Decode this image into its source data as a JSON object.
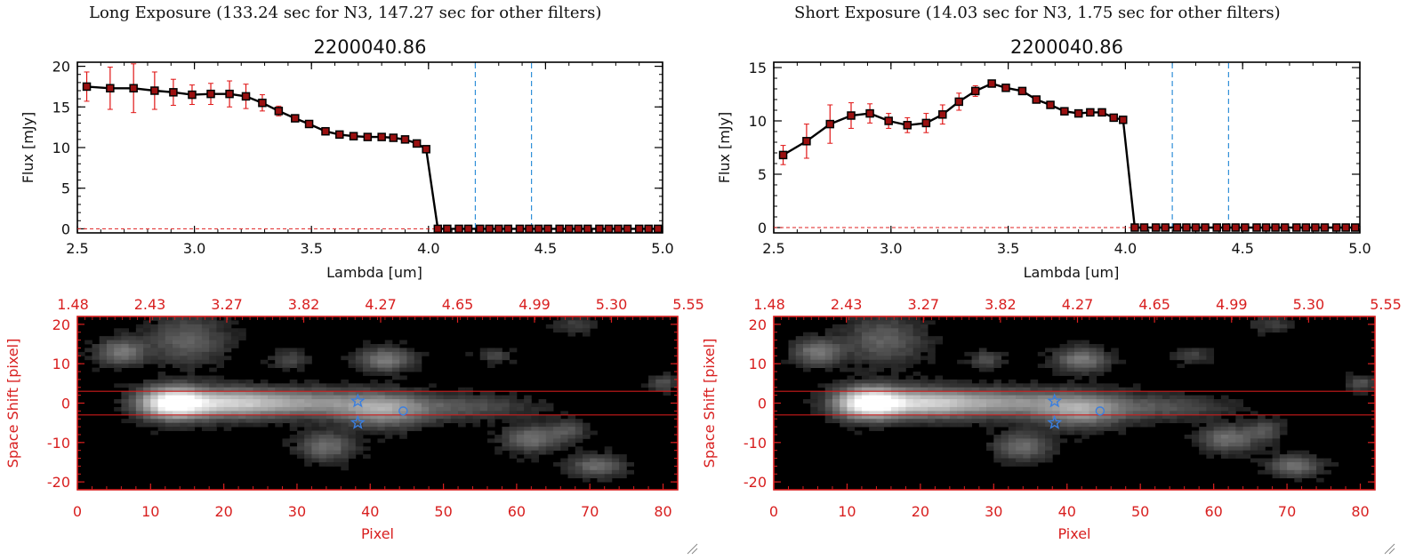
{
  "panels": [
    {
      "title": "Long Exposure (133.24 sec for N3, 147.27 sec for other filters)",
      "spectrum": {
        "type": "line",
        "title": "2200040.86",
        "xlabel": "Lambda [um]",
        "ylabel": "Flux [mJy]",
        "xlim": [
          2.5,
          5.0
        ],
        "ylim": [
          -0.5,
          20.5
        ],
        "xticks": [
          "2.5",
          "3.0",
          "3.5",
          "4.0",
          "4.5",
          "5.0"
        ],
        "yticks": [
          "0",
          "5",
          "10",
          "15",
          "20"
        ],
        "dashed_lines": [
          4.2,
          4.44
        ],
        "x": [
          2.54,
          2.64,
          2.74,
          2.83,
          2.91,
          2.99,
          3.07,
          3.15,
          3.22,
          3.29,
          3.36,
          3.43,
          3.49,
          3.56,
          3.62,
          3.68,
          3.74,
          3.8,
          3.85,
          3.9,
          3.95,
          3.99,
          4.04,
          4.08,
          4.13,
          4.17,
          4.22,
          4.26,
          4.3,
          4.34,
          4.39,
          4.43,
          4.47,
          4.51,
          4.56,
          4.6,
          4.64,
          4.68,
          4.73,
          4.77,
          4.81,
          4.85,
          4.9,
          4.94,
          4.98
        ],
        "y": [
          17.5,
          17.3,
          17.3,
          17.0,
          16.8,
          16.5,
          16.6,
          16.6,
          16.3,
          15.5,
          14.5,
          13.6,
          12.9,
          12.0,
          11.6,
          11.4,
          11.3,
          11.3,
          11.2,
          11.0,
          10.5,
          9.8,
          0,
          0,
          0,
          0,
          0,
          0,
          0,
          0,
          0,
          0,
          0,
          0,
          0,
          0,
          0,
          0,
          0,
          0,
          0,
          0,
          0,
          0,
          0
        ],
        "yerr": [
          1.8,
          2.6,
          3.0,
          2.3,
          1.6,
          1.2,
          1.3,
          1.6,
          1.5,
          1.0,
          0.6,
          0.4,
          0.3,
          0.3,
          0.2,
          0.2,
          0.2,
          0.2,
          0.2,
          0.2,
          0.3,
          0.4,
          0,
          0,
          0,
          0,
          0,
          0,
          0,
          0,
          0,
          0,
          0,
          0,
          0,
          0,
          0,
          0,
          0,
          0,
          0,
          0,
          0,
          0,
          0
        ]
      },
      "image": {
        "type": "heatmap",
        "xlabel": "Pixel",
        "ylabel": "Space Shift [pixel]",
        "xlim": [
          0,
          82
        ],
        "ylim": [
          -22,
          22
        ],
        "xticks": [
          "0",
          "10",
          "20",
          "30",
          "40",
          "50",
          "60",
          "70",
          "80"
        ],
        "yticks": [
          "-20",
          "-10",
          "0",
          "10",
          "20"
        ],
        "top_ticks": [
          "1.48",
          "2.43",
          "3.27",
          "3.82",
          "4.27",
          "4.65",
          "4.99",
          "5.30",
          "5.55"
        ],
        "aperture_lines": [
          3,
          -3
        ],
        "markers": [
          {
            "shape": "star",
            "x": 38.3,
            "y": 0.5
          },
          {
            "shape": "star",
            "x": 38.3,
            "y": -5
          },
          {
            "shape": "circle",
            "x": 44.5,
            "y": -2
          }
        ]
      }
    },
    {
      "title": "Short Exposure (14.03 sec for N3, 1.75 sec for other filters)",
      "spectrum": {
        "type": "line",
        "title": "2200040.86",
        "xlabel": "Lambda [um]",
        "ylabel": "Flux [mJy]",
        "xlim": [
          2.5,
          5.0
        ],
        "ylim": [
          -0.5,
          15.5
        ],
        "xticks": [
          "2.5",
          "3.0",
          "3.5",
          "4.0",
          "4.5",
          "5.0"
        ],
        "yticks": [
          "0",
          "5",
          "10",
          "15"
        ],
        "dashed_lines": [
          4.2,
          4.44
        ],
        "x": [
          2.54,
          2.64,
          2.74,
          2.83,
          2.91,
          2.99,
          3.07,
          3.15,
          3.22,
          3.29,
          3.36,
          3.43,
          3.49,
          3.56,
          3.62,
          3.68,
          3.74,
          3.8,
          3.85,
          3.9,
          3.95,
          3.99,
          4.04,
          4.08,
          4.13,
          4.17,
          4.22,
          4.26,
          4.3,
          4.34,
          4.39,
          4.43,
          4.47,
          4.51,
          4.56,
          4.6,
          4.64,
          4.68,
          4.73,
          4.77,
          4.81,
          4.85,
          4.9,
          4.94,
          4.98
        ],
        "y": [
          6.8,
          8.1,
          9.7,
          10.5,
          10.7,
          10.0,
          9.6,
          9.8,
          10.6,
          11.8,
          12.8,
          13.5,
          13.1,
          12.8,
          12.0,
          11.5,
          10.9,
          10.7,
          10.8,
          10.8,
          10.3,
          10.1,
          0,
          0,
          0,
          0,
          0,
          0,
          0,
          0,
          0,
          0,
          0,
          0,
          0,
          0,
          0,
          0,
          0,
          0,
          0,
          0,
          0,
          0,
          0
        ],
        "yerr": [
          0.9,
          1.6,
          1.8,
          1.2,
          0.9,
          0.7,
          0.7,
          0.9,
          0.9,
          0.8,
          0.5,
          0.3,
          0.3,
          0.3,
          0.2,
          0.2,
          0.2,
          0.2,
          0.2,
          0.2,
          0.2,
          0.3,
          0,
          0,
          0,
          0,
          0,
          0,
          0,
          0,
          0,
          0,
          0,
          0,
          0,
          0,
          0,
          0,
          0,
          0,
          0,
          0,
          0,
          0,
          0
        ]
      },
      "image": {
        "type": "heatmap",
        "xlabel": "Pixel",
        "ylabel": "Space Shift [pixel]",
        "xlim": [
          0,
          82
        ],
        "ylim": [
          -22,
          22
        ],
        "xticks": [
          "0",
          "10",
          "20",
          "30",
          "40",
          "50",
          "60",
          "70",
          "80"
        ],
        "yticks": [
          "-20",
          "-10",
          "0",
          "10",
          "20"
        ],
        "top_ticks": [
          "1.48",
          "2.43",
          "3.27",
          "3.82",
          "4.27",
          "4.65",
          "4.99",
          "5.30",
          "5.55"
        ],
        "aperture_lines": [
          3,
          -3
        ],
        "markers": [
          {
            "shape": "star",
            "x": 38.3,
            "y": 0.5
          },
          {
            "shape": "star",
            "x": 38.3,
            "y": -5
          },
          {
            "shape": "circle",
            "x": 44.5,
            "y": -2
          }
        ]
      }
    }
  ],
  "image_sources": [
    {
      "x": 13,
      "y": 0,
      "sx": 3.0,
      "sy": 2.6,
      "amp": 1.0
    },
    {
      "x": 20,
      "y": 0,
      "sx": 5.0,
      "sy": 2.4,
      "amp": 0.55
    },
    {
      "x": 31,
      "y": 0,
      "sx": 8.0,
      "sy": 2.3,
      "amp": 0.45
    },
    {
      "x": 42,
      "y": -2,
      "sx": 4.0,
      "sy": 2.8,
      "amp": 0.42
    },
    {
      "x": 53,
      "y": -1,
      "sx": 6.0,
      "sy": 2.0,
      "amp": 0.2
    },
    {
      "x": 6,
      "y": 13,
      "sx": 2.2,
      "sy": 2.2,
      "amp": 0.35
    },
    {
      "x": 15,
      "y": 16,
      "sx": 3.5,
      "sy": 4.0,
      "amp": 0.25
    },
    {
      "x": 42,
      "y": 11,
      "sx": 2.4,
      "sy": 2.0,
      "amp": 0.35
    },
    {
      "x": 29,
      "y": 11,
      "sx": 1.5,
      "sy": 1.5,
      "amp": 0.18
    },
    {
      "x": 34,
      "y": -11,
      "sx": 2.5,
      "sy": 2.4,
      "amp": 0.3
    },
    {
      "x": 62,
      "y": -9,
      "sx": 2.5,
      "sy": 2.2,
      "amp": 0.32
    },
    {
      "x": 67,
      "y": -7,
      "sx": 1.6,
      "sy": 1.8,
      "amp": 0.2
    },
    {
      "x": 71,
      "y": -16,
      "sx": 2.4,
      "sy": 1.8,
      "amp": 0.3
    },
    {
      "x": 80,
      "y": 5,
      "sx": 1.2,
      "sy": 1.4,
      "amp": 0.2
    },
    {
      "x": 57,
      "y": 12,
      "sx": 1.6,
      "sy": 1.2,
      "amp": 0.15
    },
    {
      "x": 68,
      "y": 20,
      "sx": 2.0,
      "sy": 1.5,
      "amp": 0.12
    }
  ],
  "colors": {
    "line": "#000000",
    "marker_fill": "#9a1010",
    "errorbar": "#e01414",
    "dashed": "#2f8fd8",
    "zero_line": "#e02020",
    "image_axes": "#d81f1f",
    "aperture": "#cc1b1b",
    "marker": "#3a7fe0"
  }
}
